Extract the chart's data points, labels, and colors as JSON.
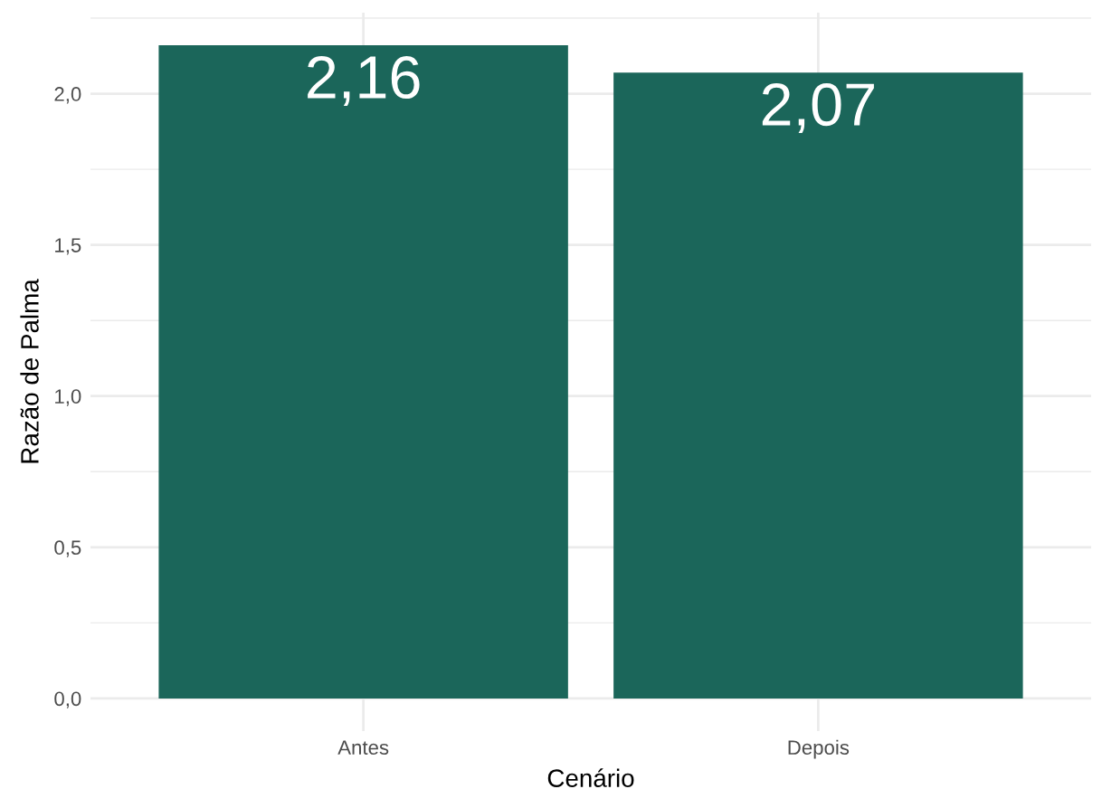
{
  "chart_data": {
    "type": "bar",
    "xlabel": "Cenário",
    "ylabel": "Razão de Palma",
    "categories": [
      "Antes",
      "Depois"
    ],
    "values": [
      2.16,
      2.07
    ],
    "color": "#1b665a",
    "value_labels": [
      "2,16",
      "2,07"
    ],
    "ylim": [
      -0.108,
      2.268
    ],
    "yticks": [
      {
        "value": 0,
        "label": "0,0"
      },
      {
        "value": 0.25,
        "label": null
      },
      {
        "value": 0.5,
        "label": "0,5"
      },
      {
        "value": 0.75,
        "label": null
      },
      {
        "value": 1.0,
        "label": "1,0"
      },
      {
        "value": 1.25,
        "label": null
      },
      {
        "value": 1.5,
        "label": "1,5"
      },
      {
        "value": 1.75,
        "label": null
      },
      {
        "value": 2.0,
        "label": "2,0"
      },
      {
        "value": 2.25,
        "label": null
      }
    ],
    "grid": true,
    "legend": false
  }
}
